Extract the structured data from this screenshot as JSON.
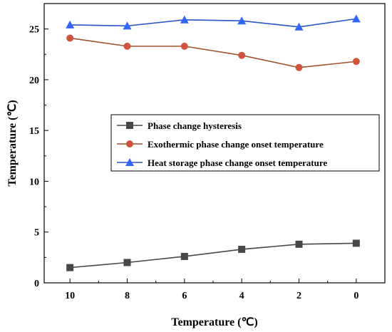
{
  "chart_data": {
    "type": "line",
    "xlabel": "Temperature (℃)",
    "ylabel": "Temperature (℃)",
    "x": [
      10,
      8,
      6,
      4,
      2,
      0
    ],
    "x_tick_labels": [
      "10",
      "8",
      "6",
      "4",
      "2",
      "0"
    ],
    "x_reversed": true,
    "ylim": [
      0,
      27.5
    ],
    "y_tick_labels": [
      "0",
      "5",
      "10",
      "15",
      "20",
      "25"
    ],
    "grid": false,
    "legend_position": "center-right",
    "series": [
      {
        "name": "Phase change hysteresis",
        "marker": "square",
        "color": "#474747",
        "values": [
          1.5,
          2.0,
          2.6,
          3.3,
          3.8,
          3.9
        ]
      },
      {
        "name": "Exothermic phase change onset temperature",
        "marker": "circle",
        "color": "#d0543b",
        "line_color": "#a0522d",
        "values": [
          24.1,
          23.3,
          23.3,
          22.4,
          21.2,
          21.8
        ]
      },
      {
        "name": "Heat storage phase change onset temperature",
        "marker": "triangle",
        "color": "#3366ff",
        "line_color": "#2a55c9",
        "values": [
          25.4,
          25.3,
          25.9,
          25.8,
          25.2,
          26.0
        ]
      }
    ]
  }
}
